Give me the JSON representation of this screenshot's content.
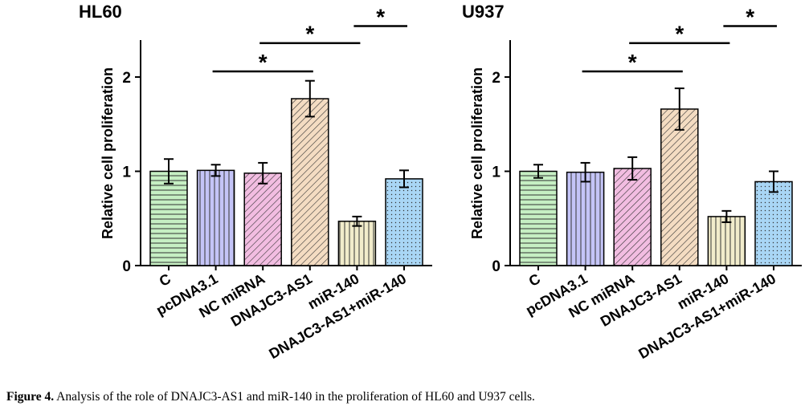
{
  "figure": {
    "caption_label": "Figure 4.",
    "caption_text": " Analysis of the role of DNAJC3-AS1 and miR-140 in the proliferation of HL60 and U937 cells."
  },
  "chart_data": [
    {
      "type": "bar",
      "title": "HL60",
      "ylabel": "Relative cell proliferation",
      "xlabel": "",
      "ylim": [
        0,
        2.4
      ],
      "yticks": [
        0,
        1,
        2
      ],
      "categories": [
        "C",
        "pcDNA3.1",
        "NC miRNA",
        "DNAJC3-AS1",
        "miR-140",
        "DNAJC3-AS1+miR-140"
      ],
      "values": [
        1.0,
        1.01,
        0.98,
        1.77,
        0.47,
        0.92
      ],
      "errors": [
        0.13,
        0.06,
        0.11,
        0.19,
        0.05,
        0.09
      ],
      "colors": [
        "#c6efc3",
        "#c4c4f7",
        "#f2bde1",
        "#f4dcc2",
        "#f1eccb",
        "#a9d6f5"
      ],
      "patterns": [
        "hlines",
        "vlines",
        "diag-right",
        "diag-right",
        "vlines",
        "dots"
      ],
      "significance": [
        {
          "from": 1,
          "to": 3,
          "level": 1.03,
          "label": "*"
        },
        {
          "from": 2,
          "to": 4,
          "level": 1.18,
          "label": "*"
        },
        {
          "from": 4,
          "to": 5,
          "level": 1.27,
          "label": "*"
        }
      ]
    },
    {
      "type": "bar",
      "title": "U937",
      "ylabel": "Relative cell proliferation",
      "xlabel": "",
      "ylim": [
        0,
        2.4
      ],
      "yticks": [
        0,
        1,
        2
      ],
      "categories": [
        "C",
        "pcDNA3.1",
        "NC miRNA",
        "DNAJC3-AS1",
        "miR-140",
        "DNAJC3-AS1+miR-140"
      ],
      "values": [
        1.0,
        0.99,
        1.03,
        1.66,
        0.52,
        0.89
      ],
      "errors": [
        0.07,
        0.1,
        0.12,
        0.22,
        0.06,
        0.11
      ],
      "colors": [
        "#c6efc3",
        "#c4c4f7",
        "#f2bde1",
        "#f4dcc2",
        "#f1eccb",
        "#a9d6f5"
      ],
      "patterns": [
        "hlines",
        "vlines",
        "diag-right",
        "diag-right",
        "vlines",
        "dots"
      ],
      "significance": [
        {
          "from": 1,
          "to": 3,
          "level": 1.03,
          "label": "*"
        },
        {
          "from": 2,
          "to": 4,
          "level": 1.18,
          "label": "*"
        },
        {
          "from": 4,
          "to": 5,
          "level": 1.27,
          "label": "*"
        }
      ]
    }
  ]
}
